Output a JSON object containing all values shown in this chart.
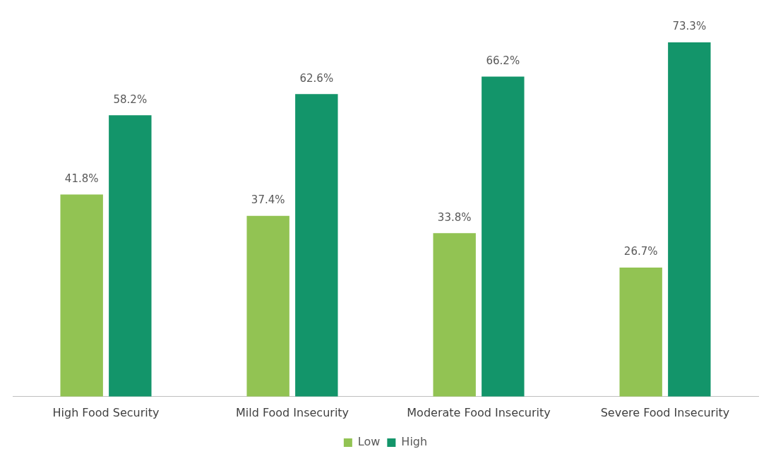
{
  "chart_data": {
    "type": "bar",
    "categories": [
      "High Food Security",
      "Mild Food Insecurity",
      "Moderate Food Insecurity",
      "Severe Food Insecurity"
    ],
    "series": [
      {
        "name": "Low",
        "color": "#92c353",
        "values": [
          41.8,
          37.4,
          33.8,
          26.7
        ],
        "value_labels": [
          "41.8%",
          "37.4%",
          "33.8%",
          "26.7%"
        ]
      },
      {
        "name": "High",
        "color": "#13956a",
        "values": [
          58.2,
          62.6,
          66.2,
          73.3
        ],
        "value_labels": [
          "58.2%",
          "62.6%",
          "66.2%",
          "73.3%"
        ]
      }
    ],
    "legend": "bottom",
    "grid": false,
    "tick_labels": "x"
  }
}
